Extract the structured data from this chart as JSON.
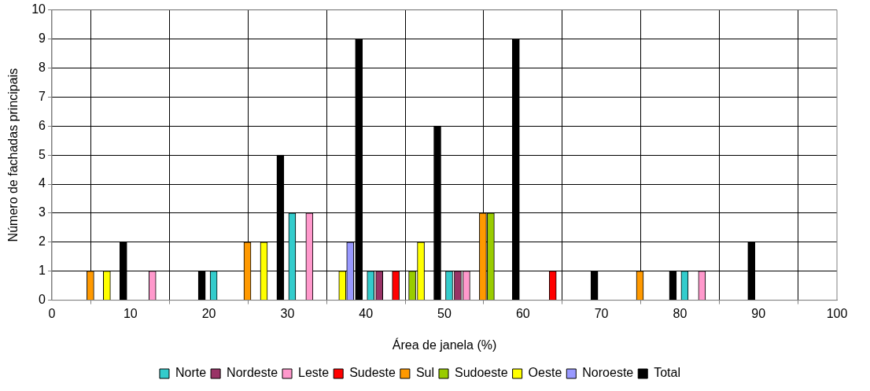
{
  "chart_data": {
    "type": "bar",
    "xlabel": "Área de janela (%)",
    "ylabel": "Número de fachadas principais",
    "xlim": [
      0,
      100
    ],
    "xticks": [
      0,
      10,
      20,
      30,
      40,
      50,
      60,
      70,
      80,
      90,
      100
    ],
    "ylim": [
      0,
      10
    ],
    "yticks": [
      0,
      1,
      2,
      3,
      4,
      5,
      6,
      7,
      8,
      9,
      10
    ],
    "grid": true,
    "legend": "bottom",
    "series": [
      {
        "name": "Norte",
        "color": "#33cccc",
        "x": [
          20.6,
          30.6,
          40.6,
          50.6,
          80.6
        ],
        "values": [
          1,
          3,
          1,
          1,
          1
        ]
      },
      {
        "name": "Nordeste",
        "color": "#993366",
        "x": [
          41.7,
          51.7
        ],
        "values": [
          1,
          1
        ]
      },
      {
        "name": "Leste",
        "color": "#ff99cc",
        "x": [
          12.8,
          32.8,
          52.8,
          82.8
        ],
        "values": [
          1,
          3,
          1,
          1
        ]
      },
      {
        "name": "Sudeste",
        "color": "#ff0000",
        "x": [
          43.8,
          63.8
        ],
        "values": [
          1,
          1
        ]
      },
      {
        "name": "Sul",
        "color": "#ff9900",
        "x": [
          4.9,
          24.9,
          54.9,
          74.9
        ],
        "values": [
          1,
          2,
          3,
          1
        ]
      },
      {
        "name": "Sudoeste",
        "color": "#99cc00",
        "x": [
          45.9,
          55.9
        ],
        "values": [
          1,
          3
        ]
      },
      {
        "name": "Oeste",
        "color": "#ffff00",
        "x": [
          7.0,
          27.0,
          37.0,
          47.0
        ],
        "values": [
          1,
          2,
          1,
          2
        ]
      },
      {
        "name": "Noroeste",
        "color": "#9999ff",
        "x": [
          38.0
        ],
        "values": [
          2
        ]
      },
      {
        "name": "Total",
        "color": "#000000",
        "x": [
          9.1,
          19.1,
          29.1,
          39.1,
          49.1,
          59.1,
          69.1,
          79.1,
          89.1
        ],
        "values": [
          2,
          1,
          5,
          9,
          6,
          9,
          1,
          1,
          2
        ]
      }
    ]
  }
}
